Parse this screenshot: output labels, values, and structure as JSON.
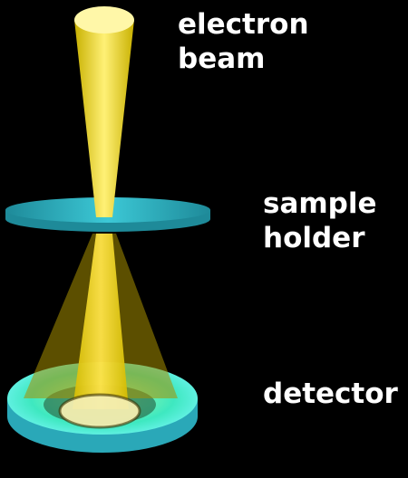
{
  "labels": {
    "electron_beam": [
      "electron",
      "beam"
    ],
    "sample_holder": [
      "sample",
      "holder"
    ],
    "detector": "detector"
  },
  "colors": {
    "background": "#000000",
    "beam": "#ffe000",
    "sample_holder": "#2ab8c8",
    "detector_ring": "#40f0c8",
    "detector_base": "#2aa8b8",
    "label_text": "#ffffff"
  }
}
